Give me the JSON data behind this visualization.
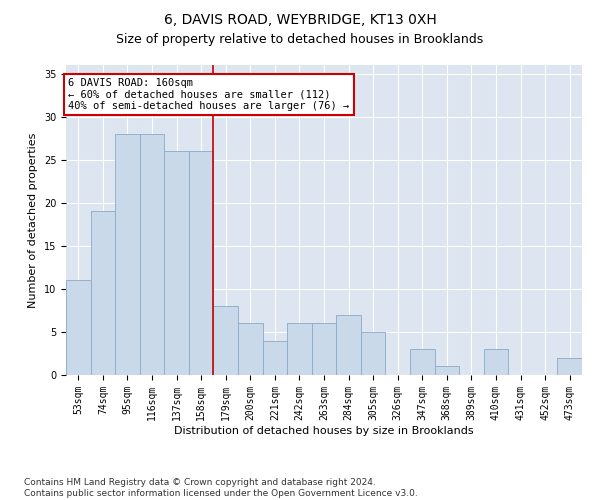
{
  "title": "6, DAVIS ROAD, WEYBRIDGE, KT13 0XH",
  "subtitle": "Size of property relative to detached houses in Brooklands",
  "xlabel": "Distribution of detached houses by size in Brooklands",
  "ylabel": "Number of detached properties",
  "footer_line1": "Contains HM Land Registry data © Crown copyright and database right 2024.",
  "footer_line2": "Contains public sector information licensed under the Open Government Licence v3.0.",
  "bar_labels": [
    "53sqm",
    "74sqm",
    "95sqm",
    "116sqm",
    "137sqm",
    "158sqm",
    "179sqm",
    "200sqm",
    "221sqm",
    "242sqm",
    "263sqm",
    "284sqm",
    "305sqm",
    "326sqm",
    "347sqm",
    "368sqm",
    "389sqm",
    "410sqm",
    "431sqm",
    "452sqm",
    "473sqm"
  ],
  "bar_values": [
    11,
    19,
    28,
    28,
    26,
    26,
    8,
    6,
    4,
    6,
    6,
    7,
    5,
    0,
    3,
    1,
    0,
    3,
    0,
    0,
    2
  ],
  "bar_color": "#c9d9ea",
  "bar_edge_color": "#8aaac8",
  "vline_x": 5.5,
  "vline_color": "#cc0000",
  "annotation_text": "6 DAVIS ROAD: 160sqm\n← 60% of detached houses are smaller (112)\n40% of semi-detached houses are larger (76) →",
  "annotation_box_color": "#ffffff",
  "annotation_box_edge": "#cc0000",
  "ylim": [
    0,
    36
  ],
  "yticks": [
    0,
    5,
    10,
    15,
    20,
    25,
    30,
    35
  ],
  "bg_color": "#dde6f0",
  "title_fontsize": 10,
  "subtitle_fontsize": 9,
  "tick_fontsize": 7,
  "ylabel_fontsize": 8,
  "xlabel_fontsize": 8,
  "annotation_fontsize": 7.5,
  "footer_fontsize": 6.5
}
